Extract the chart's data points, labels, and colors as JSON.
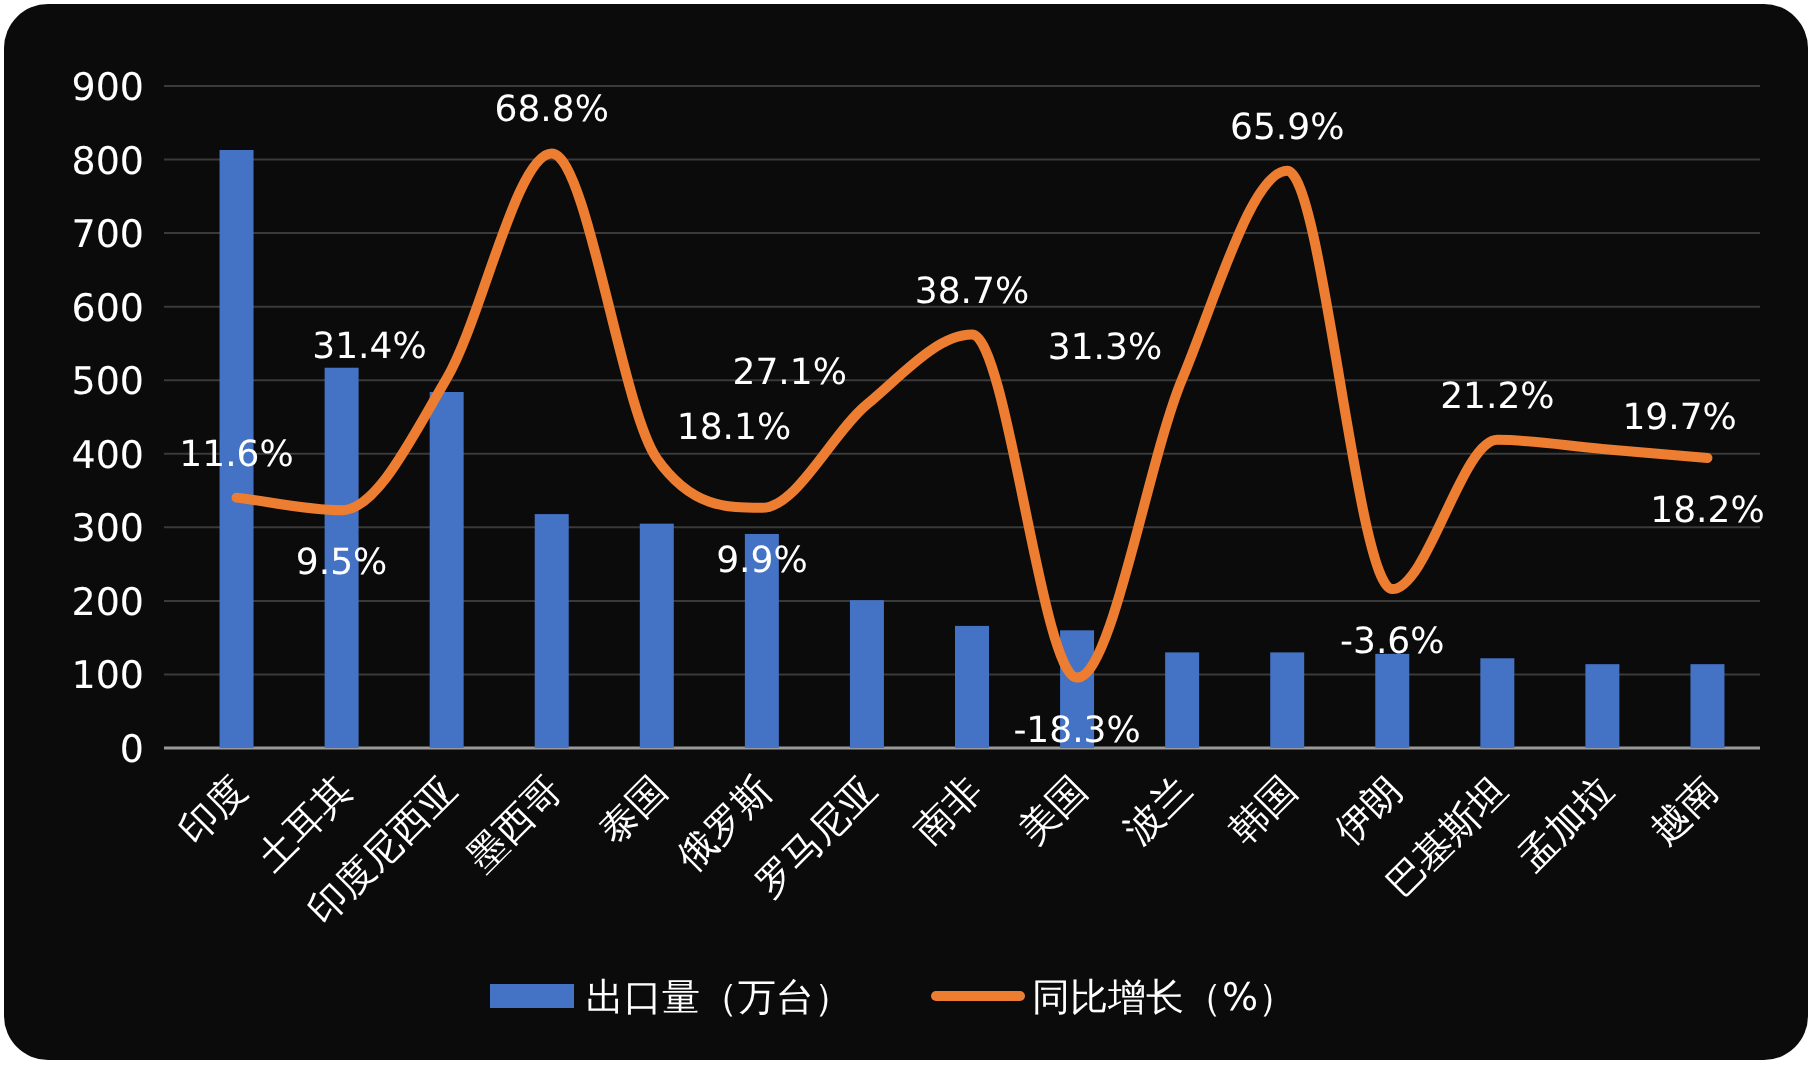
{
  "chart_data": {
    "type": "bar",
    "categories": [
      "印度",
      "土耳其",
      "印度尼西亚",
      "墨西哥",
      "泰国",
      "俄罗斯",
      "罗马尼亚",
      "南非",
      "美国",
      "波兰",
      "韩国",
      "伊朗",
      "巴基斯坦",
      "孟加拉",
      "越南"
    ],
    "series": [
      {
        "name": "出口量（万台）",
        "color": "#4472c4",
        "values": [
          813,
          517,
          484,
          318,
          305,
          291,
          201,
          166,
          160,
          130,
          130,
          128,
          122,
          114,
          114
        ]
      },
      {
        "name": "同比增长（%）",
        "type": "line",
        "axis": "y2",
        "color": "#ed7d31",
        "values": [
          11.6,
          9.5,
          31.4,
          68.8,
          18.1,
          9.9,
          27.1,
          38.7,
          -18.3,
          31.3,
          65.9,
          -3.6,
          21.2,
          19.7,
          18.2
        ],
        "value_labels": [
          "11.6%",
          "9.5%",
          "31.4%",
          "68.8%",
          "18.1%",
          "9.9%",
          "27.1%",
          "38.7%",
          "-18.3%",
          "31.3%",
          "65.9%",
          "-3.6%",
          "21.2%",
          "19.7%",
          "18.2%"
        ]
      }
    ],
    "ylim": [
      0,
      900
    ],
    "yticks": [
      0,
      100,
      200,
      300,
      400,
      500,
      600,
      700,
      800,
      900
    ],
    "y2lim": [
      -30,
      80
    ],
    "grid": "y",
    "legend": "bottom"
  }
}
